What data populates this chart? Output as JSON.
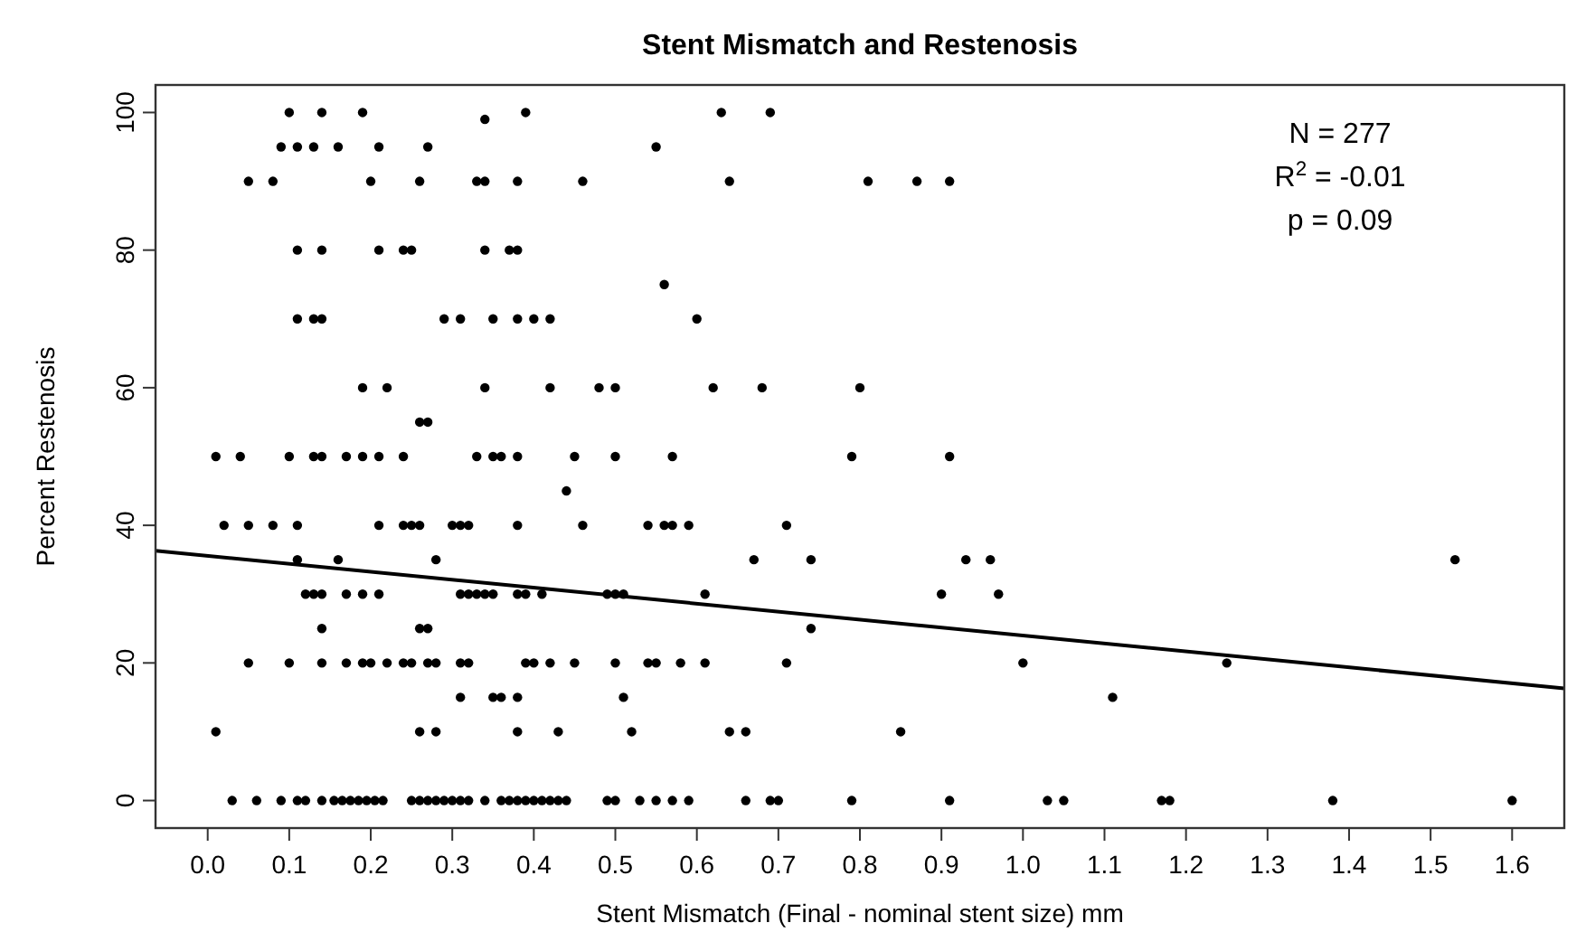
{
  "chart_data": {
    "type": "scatter",
    "title": "Stent Mismatch and Restenosis",
    "xlabel": "Stent Mismatch (Final - nominal stent size) mm",
    "ylabel": "Percent Restenosis",
    "xlim": [
      -0.064,
      1.664
    ],
    "ylim": [
      -4,
      104
    ],
    "xticks": [
      {
        "value": 0,
        "label": "0.0"
      },
      {
        "value": 0.1,
        "label": "0.1"
      },
      {
        "value": 0.2,
        "label": "0.2"
      },
      {
        "value": 0.3,
        "label": "0.3"
      },
      {
        "value": 0.4,
        "label": "0.4"
      },
      {
        "value": 0.5,
        "label": "0.5"
      },
      {
        "value": 0.6,
        "label": "0.6"
      },
      {
        "value": 0.7,
        "label": "0.7"
      },
      {
        "value": 0.8,
        "label": "0.8"
      },
      {
        "value": 0.9,
        "label": "0.9"
      },
      {
        "value": 1,
        "label": "1.0"
      },
      {
        "value": 1.1,
        "label": "1.1"
      },
      {
        "value": 1.2,
        "label": "1.2"
      },
      {
        "value": 1.3,
        "label": "1.3"
      },
      {
        "value": 1.4,
        "label": "1.4"
      },
      {
        "value": 1.5,
        "label": "1.5"
      },
      {
        "value": 1.6,
        "label": "1.6"
      }
    ],
    "yticks": [
      0,
      20,
      40,
      60,
      80,
      100
    ],
    "grid": false,
    "annotations": [
      "N = 277",
      "R$^{2}$  = -0.01",
      "p = 0.09"
    ],
    "series": [
      {
        "color": "#000000",
        "marker": "circle",
        "x": [
          0.1,
          0.14,
          0.19,
          0.34,
          0.39,
          0.63,
          0.69,
          0.09,
          0.11,
          0.13,
          0.16,
          0.21,
          0.27,
          0.55,
          0.05,
          0.08,
          0.2,
          0.26,
          0.33,
          0.34,
          0.38,
          0.46,
          0.64,
          0.81,
          0.87,
          0.91,
          0.11,
          0.14,
          0.21,
          0.24,
          0.25,
          0.34,
          0.37,
          0.38,
          0.56,
          0.11,
          0.13,
          0.14,
          0.29,
          0.31,
          0.35,
          0.38,
          0.4,
          0.42,
          0.6,
          0.19,
          0.22,
          0.34,
          0.42,
          0.48,
          0.5,
          0.62,
          0.68,
          0.8,
          0.26,
          0.27,
          0.01,
          0.04,
          0.1,
          0.13,
          0.14,
          0.17,
          0.19,
          0.21,
          0.24,
          0.33,
          0.35,
          0.36,
          0.38,
          0.45,
          0.5,
          0.57,
          0.79,
          0.91,
          0.44,
          0.02,
          0.05,
          0.08,
          0.11,
          0.21,
          0.24,
          0.25,
          0.26,
          0.3,
          0.31,
          0.32,
          0.38,
          0.46,
          0.54,
          0.56,
          0.57,
          0.59,
          0.71,
          0.11,
          0.16,
          0.28,
          0.67,
          0.74,
          0.93,
          0.96,
          1.53,
          0.12,
          0.13,
          0.14,
          0.17,
          0.19,
          0.21,
          0.31,
          0.32,
          0.33,
          0.34,
          0.35,
          0.38,
          0.39,
          0.41,
          0.49,
          0.5,
          0.51,
          0.61,
          0.9,
          0.97,
          0.14,
          0.26,
          0.27,
          0.74,
          0.05,
          0.1,
          0.14,
          0.17,
          0.19,
          0.2,
          0.22,
          0.24,
          0.25,
          0.27,
          0.28,
          0.31,
          0.32,
          0.39,
          0.4,
          0.42,
          0.45,
          0.5,
          0.54,
          0.55,
          0.58,
          0.61,
          0.71,
          1.0,
          1.25,
          0.31,
          0.35,
          0.36,
          0.38,
          0.51,
          1.11,
          0.01,
          0.26,
          0.28,
          0.38,
          0.43,
          0.52,
          0.64,
          0.66,
          0.85,
          0.03,
          0.06,
          0.09,
          0.11,
          0.12,
          0.14,
          0.155,
          0.165,
          0.175,
          0.185,
          0.195,
          0.205,
          0.215,
          0.25,
          0.26,
          0.27,
          0.28,
          0.29,
          0.3,
          0.31,
          0.32,
          0.34,
          0.36,
          0.37,
          0.38,
          0.39,
          0.4,
          0.41,
          0.42,
          0.43,
          0.44,
          0.49,
          0.5,
          0.53,
          0.55,
          0.57,
          0.59,
          0.66,
          0.69,
          0.7,
          0.79,
          0.91,
          1.03,
          1.05,
          1.17,
          1.18,
          1.38,
          1.6
        ],
        "values": [
          100,
          100,
          100,
          99,
          100,
          100,
          100,
          95,
          95,
          95,
          95,
          95,
          95,
          95,
          90,
          90,
          90,
          90,
          90,
          90,
          90,
          90,
          90,
          90,
          90,
          90,
          80,
          80,
          80,
          80,
          80,
          80,
          80,
          80,
          75,
          70,
          70,
          70,
          70,
          70,
          70,
          70,
          70,
          70,
          70,
          60,
          60,
          60,
          60,
          60,
          60,
          60,
          60,
          60,
          55,
          55,
          50,
          50,
          50,
          50,
          50,
          50,
          50,
          50,
          50,
          50,
          50,
          50,
          50,
          50,
          50,
          50,
          50,
          50,
          45,
          40,
          40,
          40,
          40,
          40,
          40,
          40,
          40,
          40,
          40,
          40,
          40,
          40,
          40,
          40,
          40,
          40,
          40,
          35,
          35,
          35,
          35,
          35,
          35,
          35,
          35,
          30,
          30,
          30,
          30,
          30,
          30,
          30,
          30,
          30,
          30,
          30,
          30,
          30,
          30,
          30,
          30,
          30,
          30,
          30,
          30,
          25,
          25,
          25,
          25,
          20,
          20,
          20,
          20,
          20,
          20,
          20,
          20,
          20,
          20,
          20,
          20,
          20,
          20,
          20,
          20,
          20,
          20,
          20,
          20,
          20,
          20,
          20,
          20,
          20,
          15,
          15,
          15,
          15,
          15,
          15,
          10,
          10,
          10,
          10,
          10,
          10,
          10,
          10,
          10,
          0,
          0,
          0,
          0,
          0,
          0,
          0,
          0,
          0,
          0,
          0,
          0,
          0,
          0,
          0,
          0,
          0,
          0,
          0,
          0,
          0,
          0,
          0,
          0,
          0,
          0,
          0,
          0,
          0,
          0,
          0,
          0,
          0,
          0,
          0,
          0,
          0,
          0,
          0,
          0,
          0,
          0,
          0,
          0,
          0,
          0,
          0,
          0
        ]
      },
      {
        "type": "line",
        "color": "#000000",
        "line_style": "solid",
        "marker": "none",
        "x": [
          -0.064,
          1.664
        ],
        "values": [
          36.3,
          16.3
        ]
      }
    ]
  }
}
